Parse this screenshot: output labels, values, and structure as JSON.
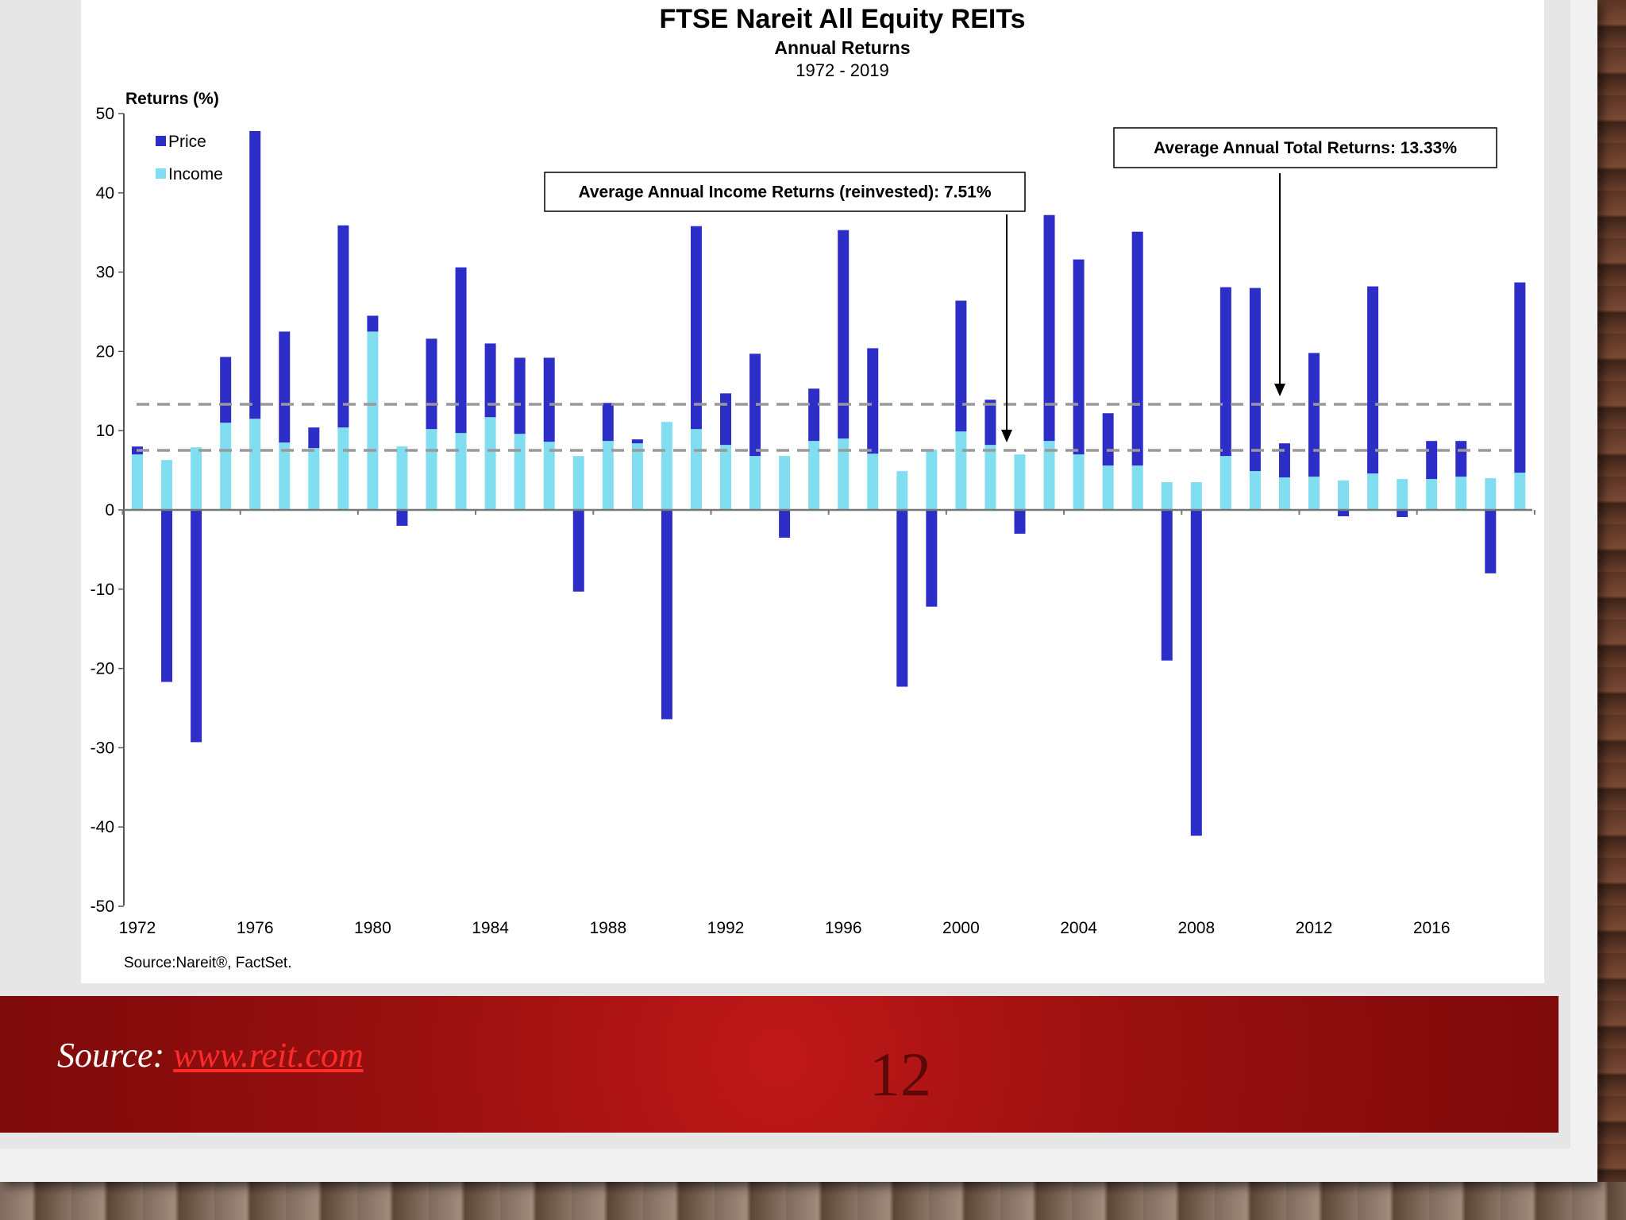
{
  "page": {
    "number": "12"
  },
  "footer": {
    "source_prefix": "Source:",
    "source_link": "www.reit.com"
  },
  "colors": {
    "price": "#2d2dc8",
    "income": "#80def0",
    "footer_red": "#a01010",
    "reference_line": "#999999"
  },
  "chart_data": {
    "type": "bar",
    "stacked": true,
    "title": "FTSE Nareit All Equity REITs",
    "subtitle": "Annual Returns",
    "period": "1972 - 2019",
    "ylabel": "Returns (%)",
    "ylim": [
      -50,
      50
    ],
    "yticks": [
      50,
      40,
      30,
      20,
      10,
      0,
      -10,
      -20,
      -30,
      -40,
      -50
    ],
    "xticks": [
      "1972",
      "1976",
      "1980",
      "1984",
      "1988",
      "1992",
      "1996",
      "2000",
      "2004",
      "2008",
      "2012",
      "2016"
    ],
    "legend": {
      "placement": "top-left",
      "entries": [
        "Price",
        "Income"
      ]
    },
    "source_note": "Source:Nareit®, FactSet.",
    "years": [
      1972,
      1973,
      1974,
      1975,
      1976,
      1977,
      1978,
      1979,
      1980,
      1981,
      1982,
      1983,
      1984,
      1985,
      1986,
      1987,
      1988,
      1989,
      1990,
      1991,
      1992,
      1993,
      1994,
      1995,
      1996,
      1997,
      1998,
      1999,
      2000,
      2001,
      2002,
      2003,
      2004,
      2005,
      2006,
      2007,
      2008,
      2009,
      2010,
      2011,
      2012,
      2013,
      2014,
      2015,
      2016,
      2017,
      2018,
      2019
    ],
    "series": [
      {
        "name": "Income",
        "values": [
          7.0,
          6.3,
          7.9,
          11.0,
          11.5,
          8.5,
          7.8,
          10.4,
          22.5,
          8.0,
          10.2,
          9.7,
          11.7,
          9.6,
          8.6,
          6.8,
          8.7,
          8.4,
          11.1,
          10.2,
          8.2,
          6.8,
          6.8,
          8.7,
          9.0,
          7.1,
          4.9,
          7.6,
          9.9,
          8.2,
          7.0,
          8.7,
          7.0,
          5.6,
          5.6,
          3.5,
          3.5,
          6.8,
          4.9,
          4.1,
          4.2,
          3.7,
          4.6,
          3.9,
          3.9,
          4.2,
          4.0,
          4.7
        ]
      },
      {
        "name": "Price",
        "values": [
          1.0,
          -21.7,
          -29.3,
          8.3,
          36.3,
          14.0,
          2.6,
          25.5,
          2.0,
          -2.0,
          11.4,
          20.9,
          9.3,
          9.6,
          10.6,
          -10.3,
          4.8,
          0.5,
          -26.4,
          25.6,
          6.5,
          12.9,
          -3.5,
          6.6,
          26.3,
          13.3,
          -22.3,
          -12.2,
          16.5,
          5.7,
          -3.0,
          28.5,
          24.6,
          6.6,
          29.5,
          -19.0,
          -41.1,
          21.3,
          23.1,
          4.3,
          15.6,
          -0.8,
          23.6,
          -0.9,
          4.8,
          4.5,
          -8.0,
          24.0
        ]
      }
    ],
    "reference_lines": [
      {
        "label": "Average Annual Total Returns: 13.33%",
        "value": 13.33
      },
      {
        "label": "Average Annual Income Returns (reinvested): 7.51%",
        "value": 7.51
      }
    ],
    "grid": false
  }
}
